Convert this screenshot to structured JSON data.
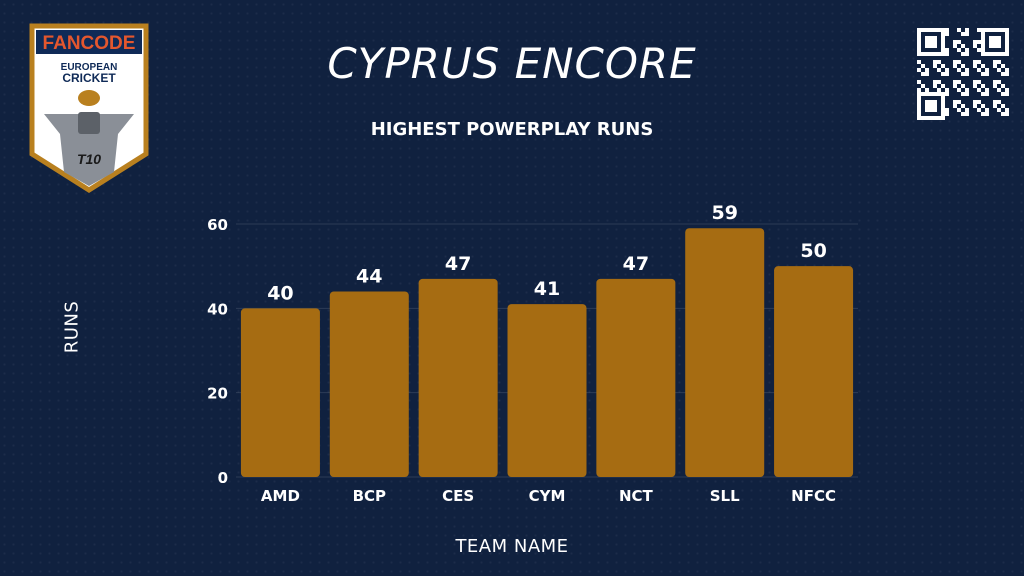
{
  "header": {
    "title": "CYPRUS ENCORE",
    "logo_brand": "FANCODE",
    "logo_line1": "EUROPEAN",
    "logo_line2": "CRICKET",
    "logo_badge": "T10"
  },
  "colors": {
    "background": "#10213f",
    "bar": "#a66c12",
    "logo_border": "#b9801f",
    "logo_brand": "#e4572e"
  },
  "icons": {
    "logo": "fancode-european-cricket-t10-logo",
    "qr": "qr-code-icon"
  },
  "chart_data": {
    "type": "bar",
    "title": "HIGHEST POWERPLAY RUNS",
    "xlabel": "TEAM NAME",
    "ylabel": "RUNS",
    "categories": [
      "AMD",
      "BCP",
      "CES",
      "CYM",
      "NCT",
      "SLL",
      "NFCC"
    ],
    "values": [
      40,
      44,
      47,
      41,
      47,
      59,
      50
    ],
    "ylim": [
      0,
      60
    ],
    "yticks": [
      "0",
      "20",
      "40",
      "60"
    ],
    "data_labels": [
      "40",
      "44",
      "47",
      "41",
      "47",
      "59",
      "50"
    ],
    "grid": true,
    "legend": "none"
  }
}
